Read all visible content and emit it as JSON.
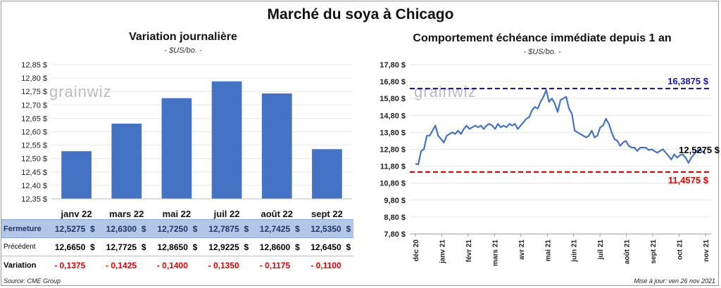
{
  "header": {
    "title": "Marché du soya à Chicago"
  },
  "left": {
    "subtitle": "Variation journalière",
    "unit": "- $US/bo. -",
    "watermark": "grainwiz",
    "source": "Source: CME Group"
  },
  "right": {
    "subtitle": "Comportement échéance immédiate depuis 1 an",
    "unit": "- $US/bo. -",
    "watermark": "grainwiz",
    "updated": "Mise à jour: ven 26 nov 2021"
  },
  "chart_data": [
    {
      "type": "bar",
      "title": "Variation journalière",
      "unit": "- $US/bo. -",
      "categories": [
        "janv 22",
        "mars 22",
        "mai 22",
        "juil 22",
        "août 22",
        "sept 22"
      ],
      "values": [
        12.5275,
        12.63,
        12.725,
        12.7875,
        12.7425,
        12.535
      ],
      "ylim": [
        12.35,
        12.85
      ],
      "yticks": [
        "12,85 $",
        "12,80 $",
        "12,75 $",
        "12,70 $",
        "12,65 $",
        "12,60 $",
        "12,55 $",
        "12,50 $",
        "12,45 $",
        "12,40 $",
        "12,35 $"
      ],
      "bar_color": "#4472c4",
      "table": {
        "rows": [
          {
            "label": "Fermeture",
            "values": [
              "12,5275",
              "12,6300",
              "12,7250",
              "12,7875",
              "12,7425",
              "12,5350"
            ]
          },
          {
            "label": "Précédent",
            "values": [
              "12,6650",
              "12,7725",
              "12,8650",
              "12,9225",
              "12,8600",
              "12,6450"
            ]
          },
          {
            "label": "Variation",
            "values": [
              "- 0,1375",
              "- 0,1425",
              "- 0,1400",
              "- 0,1350",
              "- 0,1175",
              "- 0,1100"
            ]
          }
        ],
        "currency": "$"
      }
    },
    {
      "type": "line",
      "title": "Comportement échéance immédiate depuis 1 an",
      "unit": "- $US/bo. -",
      "ylim": [
        7.8,
        17.8
      ],
      "yticks": [
        "17,80 $",
        "16,80 $",
        "15,80 $",
        "14,80 $",
        "13,80 $",
        "12,80 $",
        "11,80 $",
        "10,80 $",
        "9,80 $",
        "8,80 $",
        "7,80 $"
      ],
      "xticks": [
        "déc 20",
        "janv 21",
        "févr 21",
        "mars 21",
        "avr 21",
        "mai 21",
        "juin 21",
        "juil 21",
        "août 21",
        "sept 21",
        "oct 21",
        "nov 21"
      ],
      "line_color": "#4472c4",
      "series": [
        {
          "values": [
            11.95,
            11.9,
            12.7,
            12.8,
            13.6,
            13.6,
            13.9,
            14.2,
            13.6,
            13.4,
            13.2,
            13.6,
            13.7,
            13.8,
            13.7,
            13.9,
            13.7,
            14.0,
            14.2,
            14.0,
            14.1,
            14.2,
            14.1,
            14.2,
            14.0,
            14.2,
            14.3,
            14.2,
            14.0,
            14.3,
            14.1,
            14.2,
            14.1,
            14.3,
            14.2,
            14.3,
            14.0,
            14.2,
            14.4,
            14.6,
            14.7,
            15.1,
            15.3,
            15.2,
            15.6,
            15.9,
            16.3,
            15.6,
            15.8,
            15.5,
            15.0,
            15.7,
            15.8,
            15.9,
            15.2,
            14.9,
            13.9,
            13.8,
            13.7,
            13.6,
            13.5,
            13.6,
            13.9,
            13.5,
            13.6,
            14.1,
            14.2,
            14.6,
            14.3,
            13.8,
            13.4,
            13.3,
            13.0,
            13.2,
            13.3,
            13.0,
            12.9,
            12.9,
            12.7,
            12.9,
            12.9,
            12.9,
            12.75,
            12.8,
            12.7,
            12.6,
            12.7,
            12.8,
            12.6,
            12.4,
            12.2,
            12.5,
            12.3,
            12.45,
            12.5,
            12.3,
            12.0,
            12.3,
            12.5,
            12.7,
            12.8,
            12.65,
            12.5275
          ]
        }
      ],
      "annotations": [
        {
          "label": "16,3875 $",
          "value": 16.3875,
          "color": "#1a1aa6",
          "style": "dashed"
        },
        {
          "label": "11,4575 $",
          "value": 11.4575,
          "color": "#e00000",
          "style": "dashed"
        },
        {
          "label": "12,5275 $",
          "value": 12.5275,
          "color": "#000000",
          "style": "point-label"
        }
      ]
    }
  ]
}
